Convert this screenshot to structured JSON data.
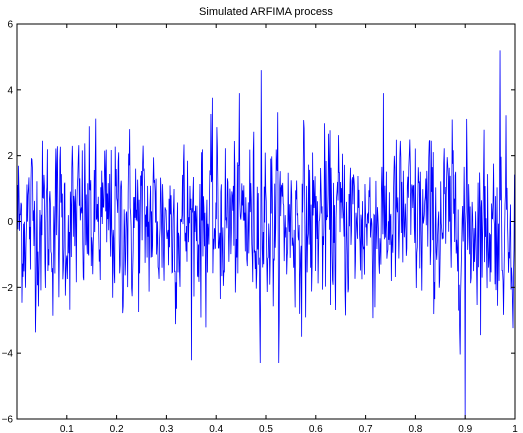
{
  "chart_data": {
    "type": "line",
    "title": "Simulated ARFIMA process",
    "xlabel": "",
    "ylabel": "",
    "xlim": [
      0,
      1
    ],
    "ylim": [
      -6,
      6
    ],
    "x_ticks": [
      "0.1",
      "0.2",
      "0.3",
      "0.4",
      "0.5",
      "0.6",
      "0.7",
      "0.8",
      "0.9",
      "1"
    ],
    "y_ticks": [
      "−6",
      "−4",
      "−2",
      "0",
      "2",
      "4",
      "6"
    ],
    "grid": false,
    "legend": "none",
    "series": [
      {
        "color": "#0000ff",
        "n_points": 1000,
        "mean": 0,
        "std": 1.3,
        "min": -6,
        "max": 5.2,
        "notable_points": [
          {
            "x": 0.49,
            "y": 4.6
          },
          {
            "x": 0.9,
            "y": -6
          },
          {
            "x": 0.97,
            "y": 5.2
          }
        ]
      }
    ]
  }
}
